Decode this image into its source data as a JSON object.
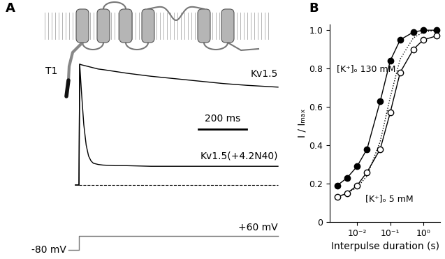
{
  "chart_data": [
    {
      "type": "line",
      "label": "A",
      "domain_label": "T1",
      "tick_labels": false,
      "x": [
        -15,
        0,
        3,
        10,
        20,
        30,
        40,
        50,
        60,
        80,
        100,
        150,
        200,
        300,
        400,
        500,
        600,
        700,
        830
      ],
      "series": [
        {
          "name": "Kv1.5",
          "color": "#000000",
          "line_style": "solid",
          "values": [
            0,
            0,
            1.0,
            0.995,
            0.99,
            0.985,
            0.98,
            0.975,
            0.97,
            0.96,
            0.955,
            0.94,
            0.925,
            0.9,
            0.88,
            0.86,
            0.84,
            0.825,
            0.81
          ]
        },
        {
          "name": "Kv1.5(+4.2N40)",
          "color": "#000000",
          "line_style": "solid",
          "values": [
            0,
            0,
            1.0,
            0.78,
            0.5,
            0.33,
            0.24,
            0.2,
            0.18,
            0.17,
            0.165,
            0.16,
            0.16,
            0.155,
            0.155,
            0.155,
            0.155,
            0.155,
            0.155
          ]
        }
      ],
      "baseline": 0,
      "scale_bar": {
        "value": 200,
        "label": "200 ms"
      },
      "protocol": {
        "holding": {
          "value": -80,
          "label": "-80 mV"
        },
        "step": {
          "value": 60,
          "label": "+60 mV"
        }
      }
    },
    {
      "type": "scatter",
      "label": "B",
      "log": "x",
      "xlabel": "Interpulse duration (s)",
      "ylabel": "I / Iₘₐₓ",
      "x": [
        0.0025,
        0.005,
        0.01,
        0.02,
        0.05,
        0.1,
        0.2,
        0.5,
        1.0,
        2.5
      ],
      "series": [
        {
          "name": "[K⁺]ₒ 130 mM",
          "color": "#000000",
          "marker": "filled circle",
          "line_style": "solid",
          "values": [
            0.19,
            0.23,
            0.29,
            0.38,
            0.63,
            0.84,
            0.95,
            0.99,
            1.0,
            1.0
          ]
        },
        {
          "name": "[K⁺]ₒ 5 mM",
          "color": "#000000",
          "marker": "open circle",
          "line_style": "solid",
          "values": [
            0.13,
            0.15,
            0.19,
            0.26,
            0.38,
            0.57,
            0.78,
            0.9,
            0.95,
            0.97
          ]
        },
        {
          "color": "#000000",
          "marker": "none",
          "line_style": "dotted",
          "values": [
            0.13,
            0.15,
            0.18,
            0.24,
            0.42,
            0.65,
            0.85,
            0.96,
            0.99,
            1.0
          ]
        }
      ],
      "xlim": [
        0.0015,
        3.2
      ],
      "ylim": [
        0,
        1.03
      ],
      "xticks": [
        {
          "value": 0.01,
          "label": "10⁻²"
        },
        {
          "value": 0.1,
          "label": "10⁻¹"
        },
        {
          "value": 1,
          "label": "10⁰"
        }
      ],
      "yticks": [
        0,
        0.2,
        0.4,
        0.6,
        0.8,
        {
          "value": 1,
          "label": "1.0"
        }
      ]
    }
  ]
}
